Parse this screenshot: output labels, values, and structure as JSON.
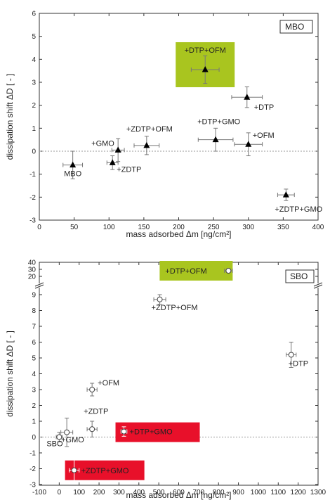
{
  "chart_data": [
    {
      "type": "scatter",
      "panel_label": "MBO",
      "xlabel": "mass adsorbed Δm [ng/cm²]",
      "ylabel": "dissipation shift ΔD [ - ]",
      "xlim": [
        0,
        400
      ],
      "ylim": [
        -3,
        6
      ],
      "xticks": [
        0,
        50,
        100,
        150,
        200,
        250,
        300,
        350,
        400
      ],
      "yticks": [
        -3,
        -2,
        -1,
        0,
        1,
        2,
        3,
        4,
        5,
        6
      ],
      "marker": "filled-triangle",
      "reference_line": 0,
      "points": [
        {
          "label": "MBO",
          "x": 48,
          "y": -0.6,
          "xerr": 14,
          "yerr": 0.6
        },
        {
          "label": "+ZDTP",
          "x": 105,
          "y": -0.5,
          "xerr": 8,
          "yerr": 0.3
        },
        {
          "label": "+GMO",
          "x": 113,
          "y": 0.05,
          "xerr": 9,
          "yerr": 0.5
        },
        {
          "label": "+ZDTP+OFM",
          "x": 154,
          "y": 0.25,
          "xerr": 18,
          "yerr": 0.4
        },
        {
          "label": "+DTP+GMO",
          "x": 253,
          "y": 0.5,
          "xerr": 25,
          "yerr": 0.5
        },
        {
          "label": "+OFM",
          "x": 300,
          "y": 0.3,
          "xerr": 20,
          "yerr": 0.5
        },
        {
          "label": "+DTP+OFM",
          "x": 238,
          "y": 3.55,
          "xerr": 20,
          "yerr": 0.6
        },
        {
          "label": "+DTP",
          "x": 298,
          "y": 2.35,
          "xerr": 22,
          "yerr": 0.45
        },
        {
          "label": "+ZDTP+GMO",
          "x": 354,
          "y": -1.9,
          "xerr": 12,
          "yerr": 0.25
        }
      ],
      "highlights": [
        {
          "label": "+DTP+OFM",
          "color": "#a9c51f"
        }
      ]
    },
    {
      "type": "scatter",
      "panel_label": "SBO",
      "xlabel": "mass adsorbed Δm [ng/cm²]",
      "ylabel": "dissipation shift ΔD [ - ]",
      "xlim": [
        -100,
        1300
      ],
      "ylim_lower": [
        -3,
        10
      ],
      "ylim_upper": [
        20,
        40
      ],
      "axis_break": true,
      "xticks": [
        -100,
        0,
        100,
        200,
        300,
        400,
        500,
        600,
        700,
        800,
        900,
        1000,
        1100,
        1200,
        1300
      ],
      "yticks": [
        -3,
        -2,
        -1,
        0,
        1,
        2,
        3,
        4,
        5,
        6,
        7,
        8,
        9,
        20,
        30,
        40
      ],
      "marker": "open-circle",
      "reference_line": 0,
      "points": [
        {
          "label": "SBO",
          "x": 0,
          "y": 0.0,
          "xerr": 15,
          "yerr": 0.3
        },
        {
          "label": "+GMO",
          "x": 38,
          "y": 0.3,
          "xerr": 30,
          "yerr": 0.9
        },
        {
          "label": "+ZDTP",
          "x": 165,
          "y": 0.5,
          "xerr": 25,
          "yerr": 0.5
        },
        {
          "label": "+OFM",
          "x": 165,
          "y": 3.0,
          "xerr": 25,
          "yerr": 0.4
        },
        {
          "label": "+ZDTP+OFM",
          "x": 505,
          "y": 8.7,
          "xerr": 30,
          "yerr": 0.3
        },
        {
          "label": "+DTP",
          "x": 1165,
          "y": 5.2,
          "xerr": 25,
          "yerr": 0.8
        },
        {
          "label": "+DTP+GMO",
          "x": 325,
          "y": 0.35,
          "xerr": 15,
          "yerr": 0.3
        },
        {
          "label": "+ZDTP+GMO",
          "x": 75,
          "y": -2.1,
          "xerr": 25,
          "yerr": 0.8
        },
        {
          "label": "+DTP+OFM",
          "x": 850,
          "y": 28,
          "xerr": 20,
          "yerr": 0.5
        }
      ],
      "highlights": [
        {
          "label": "+DTP+OFM",
          "color": "#a9c51f"
        },
        {
          "label": "+DTP+GMO",
          "color": "#e8102a"
        },
        {
          "label": "+ZDTP+GMO",
          "color": "#e8102a"
        }
      ]
    }
  ]
}
